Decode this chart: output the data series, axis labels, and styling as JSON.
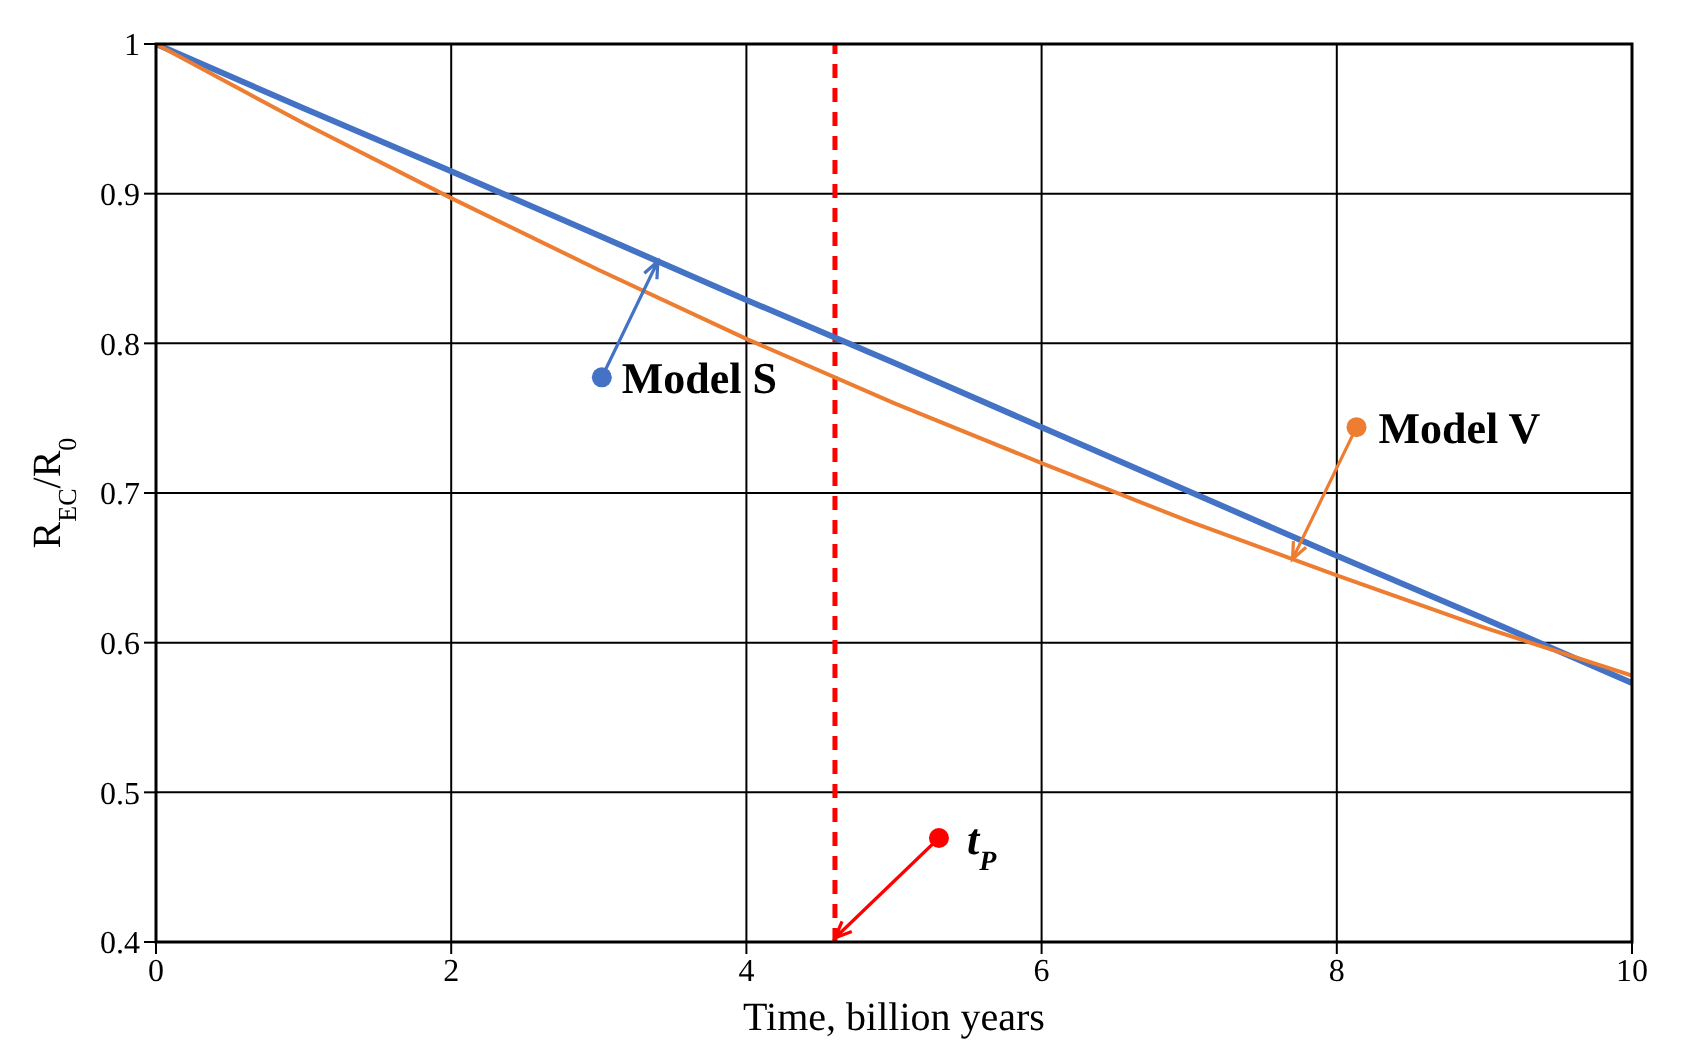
{
  "chart_data": {
    "type": "line",
    "xlabel": "Time, billion years",
    "ylabel": "R$_{EC}$/R$_{0}$",
    "x": [
      0,
      1,
      2,
      3,
      4,
      5,
      6,
      7,
      8,
      9,
      10
    ],
    "series": [
      {
        "name": "Model S",
        "color": "#4472c4",
        "values": [
          1,
          0.957,
          0.915,
          0.872,
          0.829,
          0.787,
          0.744,
          0.701,
          0.658,
          0.616,
          0.573
        ]
      },
      {
        "name": "Model V",
        "color": "#ed7d31",
        "values": [
          1,
          0.947,
          0.897,
          0.849,
          0.803,
          0.76,
          0.72,
          0.681,
          0.645,
          0.61,
          0.578
        ]
      }
    ],
    "xlim": [
      0,
      10
    ],
    "xticks": [
      0,
      2,
      4,
      6,
      8,
      10
    ],
    "ylim": [
      0.4,
      1
    ],
    "yticks": [
      0.4,
      0.5,
      0.6,
      0.7,
      0.8,
      0.9,
      1
    ],
    "grid": true,
    "legend": "top",
    "marker": "none",
    "line_style": "solid",
    "ref_lines": [
      {
        "axis": "x",
        "value": 4.6,
        "label": "t$_{P}$",
        "color": "#ff0000",
        "line_style": "dashed"
      }
    ]
  }
}
